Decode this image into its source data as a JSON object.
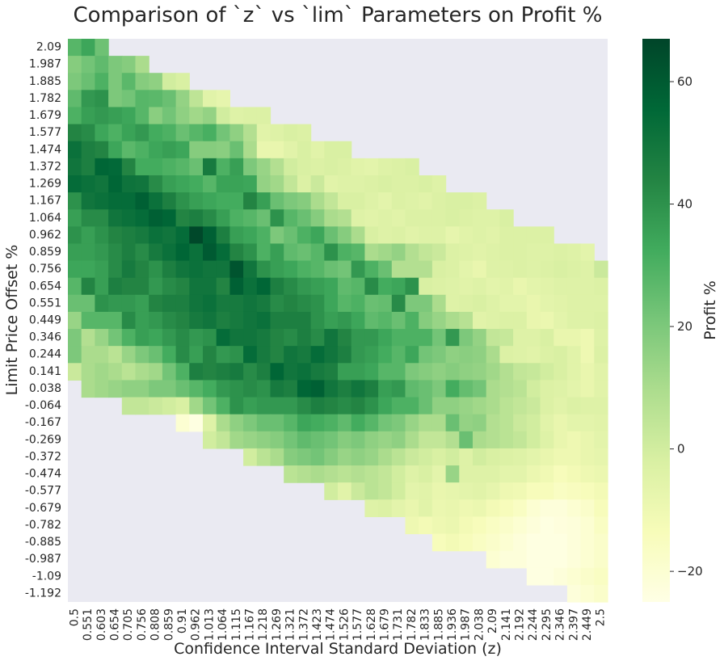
{
  "colors": {
    "cmap": [
      "#ffffe5",
      "#f7fcb9",
      "#d9f0a3",
      "#addd8e",
      "#78c679",
      "#41ab5d",
      "#238443",
      "#006837",
      "#004529"
    ],
    "background": "#eaeaf2"
  },
  "chart_data": {
    "type": "heatmap",
    "title": "Comparison of `z` vs `lim` Parameters on Profit %",
    "xlabel": "Confidence Interval Standard Deviation (z)",
    "ylabel": "Limit Price Offset %",
    "colorbar_label": "Profit %",
    "colorbar_ticks": [
      60,
      40,
      20,
      0,
      -20
    ],
    "zlim": [
      -25,
      67
    ],
    "x": [
      "0.5",
      "0.551",
      "0.603",
      "0.654",
      "0.705",
      "0.756",
      "0.808",
      "0.859",
      "0.91",
      "0.962",
      "1.013",
      "1.064",
      "1.115",
      "1.167",
      "1.218",
      "1.269",
      "1.321",
      "1.372",
      "1.423",
      "1.474",
      "1.526",
      "1.577",
      "1.628",
      "1.679",
      "1.731",
      "1.782",
      "1.833",
      "1.885",
      "1.936",
      "1.987",
      "2.038",
      "2.09",
      "2.141",
      "2.192",
      "2.244",
      "2.295",
      "2.346",
      "2.397",
      "2.449",
      "2.5"
    ],
    "y": [
      "2.09",
      "1.987",
      "1.885",
      "1.782",
      "1.679",
      "1.577",
      "1.474",
      "1.372",
      "1.269",
      "1.167",
      "1.064",
      "0.962",
      "0.859",
      "0.756",
      "0.654",
      "0.551",
      "0.449",
      "0.346",
      "0.244",
      "0.141",
      "0.038",
      "-0.064",
      "-0.167",
      "-0.269",
      "-0.372",
      "-0.474",
      "-0.577",
      "-0.679",
      "-0.782",
      "-0.885",
      "-0.987",
      "-1.09",
      "-1.192"
    ],
    "values": [
      [
        28,
        34,
        23,
        null,
        null,
        null,
        null,
        null,
        null,
        null,
        null,
        null,
        null,
        null,
        null,
        null,
        null,
        null,
        null,
        null,
        null,
        null,
        null,
        null,
        null,
        null,
        null,
        null,
        null,
        null,
        null,
        null,
        null,
        null,
        null,
        null,
        null,
        null,
        null,
        null
      ],
      [
        18,
        22,
        26,
        20,
        18,
        10,
        null,
        null,
        null,
        null,
        null,
        null,
        null,
        null,
        null,
        null,
        null,
        null,
        null,
        null,
        null,
        null,
        null,
        null,
        null,
        null,
        null,
        null,
        null,
        null,
        null,
        null,
        null,
        null,
        null,
        null,
        null,
        null,
        null,
        null
      ],
      [
        20,
        24,
        30,
        20,
        27,
        18,
        16,
        0,
        -2,
        null,
        null,
        null,
        null,
        null,
        null,
        null,
        null,
        null,
        null,
        null,
        null,
        null,
        null,
        null,
        null,
        null,
        null,
        null,
        null,
        null,
        null,
        null,
        null,
        null,
        null,
        null,
        null,
        null,
        null,
        null
      ],
      [
        26,
        38,
        40,
        20,
        22,
        28,
        27,
        24,
        15,
        5,
        -5,
        -7,
        null,
        null,
        null,
        null,
        null,
        null,
        null,
        null,
        null,
        null,
        null,
        null,
        null,
        null,
        null,
        null,
        null,
        null,
        null,
        null,
        null,
        null,
        null,
        null,
        null,
        null,
        null,
        null
      ],
      [
        30,
        36,
        38,
        36,
        34,
        28,
        17,
        22,
        16,
        12,
        15,
        0,
        -4,
        -3,
        -3,
        null,
        null,
        null,
        null,
        null,
        null,
        null,
        null,
        null,
        null,
        null,
        null,
        null,
        null,
        null,
        null,
        null,
        null,
        null,
        null,
        null,
        null,
        null,
        null,
        null
      ],
      [
        44,
        42,
        34,
        30,
        35,
        38,
        32,
        30,
        24,
        28,
        31,
        22,
        16,
        8,
        -5,
        -4,
        -2,
        -3,
        null,
        null,
        null,
        null,
        null,
        null,
        null,
        null,
        null,
        null,
        null,
        null,
        null,
        null,
        null,
        null,
        null,
        null,
        null,
        null,
        null,
        null
      ],
      [
        52,
        46,
        44,
        34,
        27,
        30,
        34,
        36,
        34,
        18,
        18,
        17,
        24,
        10,
        -8,
        -8,
        -5,
        -2,
        -5,
        -2,
        -2,
        null,
        null,
        null,
        null,
        null,
        null,
        null,
        null,
        null,
        null,
        null,
        null,
        null,
        null,
        null,
        null,
        null,
        null,
        null
      ],
      [
        50,
        46,
        56,
        55,
        44,
        32,
        32,
        30,
        28,
        24,
        48,
        30,
        36,
        20,
        14,
        8,
        0,
        -2,
        -3,
        -2,
        -3,
        -5,
        -6,
        -4,
        -3,
        -2,
        null,
        null,
        null,
        null,
        null,
        null,
        null,
        null,
        null,
        null,
        null,
        null,
        null,
        null
      ],
      [
        54,
        52,
        50,
        56,
        51,
        50,
        42,
        36,
        34,
        32,
        28,
        35,
        35,
        34,
        15,
        12,
        4,
        -3,
        2,
        -5,
        -4,
        -4,
        -3,
        -2,
        -3,
        -3,
        -2,
        -4,
        null,
        null,
        null,
        null,
        null,
        null,
        null,
        null,
        null,
        null,
        null,
        null
      ],
      [
        40,
        50,
        52,
        54,
        54,
        58,
        52,
        46,
        40,
        36,
        34,
        32,
        32,
        44,
        36,
        24,
        20,
        18,
        10,
        4,
        -2,
        -2,
        -4,
        -6,
        -3,
        -4,
        -5,
        -3,
        -2,
        -2,
        -3,
        null,
        null,
        null,
        null,
        null,
        null,
        null,
        null,
        null
      ],
      [
        36,
        42,
        42,
        50,
        52,
        54,
        58,
        56,
        44,
        46,
        42,
        36,
        30,
        28,
        24,
        40,
        28,
        24,
        18,
        10,
        8,
        -4,
        -5,
        -4,
        -5,
        -3,
        -3,
        -3,
        -2,
        -3,
        -4,
        -4,
        -2,
        null,
        null,
        null,
        null,
        null,
        null,
        null
      ],
      [
        40,
        36,
        40,
        44,
        46,
        48,
        52,
        50,
        54,
        66,
        58,
        46,
        36,
        34,
        30,
        20,
        24,
        30,
        34,
        24,
        18,
        10,
        -2,
        -4,
        -3,
        -5,
        -4,
        -4,
        -7,
        -5,
        -4,
        -5,
        -3,
        -3,
        -3,
        -3,
        null,
        null,
        null,
        null
      ],
      [
        36,
        36,
        38,
        42,
        46,
        42,
        48,
        52,
        56,
        52,
        60,
        54,
        44,
        40,
        30,
        36,
        26,
        24,
        28,
        40,
        30,
        28,
        10,
        12,
        15,
        8,
        4,
        2,
        -3,
        -4,
        -5,
        -4,
        -3,
        -3,
        -4,
        -4,
        -3,
        -4,
        -6,
        null
      ],
      [
        34,
        34,
        36,
        42,
        48,
        44,
        40,
        46,
        50,
        52,
        50,
        50,
        62,
        50,
        40,
        36,
        34,
        30,
        28,
        24,
        22,
        38,
        30,
        24,
        8,
        8,
        8,
        -2,
        -3,
        -6,
        -8,
        -4,
        -4,
        -3,
        -4,
        -3,
        -2,
        -3,
        -4,
        2
      ],
      [
        28,
        44,
        36,
        46,
        44,
        44,
        38,
        42,
        44,
        50,
        50,
        44,
        58,
        52,
        56,
        46,
        42,
        38,
        36,
        34,
        26,
        28,
        42,
        32,
        34,
        40,
        -2,
        -3,
        -4,
        -5,
        -4,
        -6,
        -5,
        -8,
        -6,
        -5,
        -4,
        -4,
        -4,
        -3
      ],
      [
        24,
        24,
        40,
        38,
        38,
        36,
        44,
        46,
        46,
        50,
        52,
        48,
        48,
        50,
        48,
        42,
        44,
        42,
        40,
        34,
        28,
        30,
        24,
        25,
        42,
        20,
        20,
        10,
        -4,
        -3,
        -2,
        -4,
        -6,
        -6,
        -8,
        -6,
        -5,
        -4,
        -4,
        -4
      ],
      [
        14,
        28,
        28,
        28,
        42,
        36,
        38,
        42,
        44,
        48,
        50,
        46,
        48,
        50,
        52,
        46,
        46,
        46,
        40,
        36,
        38,
        34,
        26,
        28,
        24,
        30,
        18,
        14,
        10,
        7,
        -5,
        -4,
        -3,
        -3,
        -8,
        -9,
        -6,
        -4,
        -4,
        -3
      ],
      [
        20,
        8,
        14,
        22,
        30,
        36,
        34,
        38,
        42,
        38,
        40,
        54,
        50,
        50,
        48,
        44,
        42,
        46,
        42,
        50,
        44,
        38,
        38,
        34,
        30,
        30,
        30,
        22,
        38,
        20,
        15,
        4,
        3,
        -4,
        -4,
        -2,
        -8,
        -8,
        -10,
        -4
      ],
      [
        20,
        10,
        10,
        6,
        14,
        20,
        24,
        32,
        42,
        36,
        44,
        38,
        40,
        54,
        48,
        44,
        50,
        48,
        54,
        50,
        46,
        38,
        36,
        32,
        28,
        34,
        22,
        20,
        16,
        17,
        16,
        10,
        -3,
        -4,
        -5,
        -3,
        -2,
        -5,
        -10,
        -3
      ],
      [
        2,
        10,
        12,
        10,
        6,
        10,
        12,
        22,
        30,
        46,
        44,
        46,
        48,
        42,
        46,
        56,
        50,
        52,
        48,
        46,
        36,
        36,
        34,
        28,
        28,
        20,
        18,
        16,
        18,
        16,
        15,
        12,
        8,
        4,
        3,
        0,
        -2,
        -5,
        -8,
        -5
      ],
      [
        null,
        10,
        12,
        14,
        16,
        16,
        20,
        20,
        24,
        28,
        32,
        38,
        40,
        42,
        40,
        48,
        46,
        56,
        58,
        50,
        46,
        50,
        46,
        36,
        38,
        26,
        24,
        20,
        32,
        25,
        22,
        10,
        8,
        6,
        0,
        -3,
        -4,
        -6,
        -8,
        -5
      ],
      [
        null,
        null,
        null,
        null,
        4,
        4,
        2,
        0,
        -2,
        12,
        22,
        30,
        40,
        36,
        38,
        38,
        38,
        42,
        46,
        44,
        42,
        44,
        40,
        34,
        30,
        30,
        24,
        16,
        16,
        14,
        12,
        10,
        6,
        4,
        2,
        -3,
        -5,
        -3,
        -4,
        -4
      ],
      [
        null,
        null,
        null,
        null,
        null,
        null,
        null,
        null,
        -20,
        -24,
        -4,
        10,
        16,
        20,
        24,
        24,
        28,
        34,
        32,
        30,
        26,
        32,
        28,
        22,
        20,
        14,
        10,
        10,
        24,
        15,
        16,
        8,
        6,
        2,
        0,
        -5,
        -8,
        -6,
        -6,
        -5
      ],
      [
        null,
        null,
        null,
        null,
        null,
        null,
        null,
        null,
        null,
        null,
        0,
        4,
        12,
        14,
        16,
        18,
        22,
        26,
        24,
        22,
        18,
        20,
        16,
        14,
        16,
        10,
        4,
        4,
        8,
        24,
        10,
        8,
        6,
        4,
        0,
        -4,
        -8,
        -10,
        -8,
        -6
      ],
      [
        null,
        null,
        null,
        null,
        null,
        null,
        null,
        null,
        null,
        null,
        null,
        null,
        null,
        0,
        6,
        10,
        18,
        20,
        22,
        18,
        14,
        16,
        14,
        10,
        6,
        2,
        0,
        -2,
        0,
        -4,
        0,
        -2,
        -3,
        -4,
        -6,
        -8,
        -10,
        -10,
        -8,
        -7
      ],
      [
        null,
        null,
        null,
        null,
        null,
        null,
        null,
        null,
        null,
        null,
        null,
        null,
        null,
        null,
        null,
        null,
        6,
        8,
        10,
        8,
        6,
        8,
        6,
        4,
        0,
        -4,
        -2,
        -6,
        14,
        -4,
        -4,
        -4,
        -6,
        -6,
        -9,
        -11,
        -14,
        -12,
        -10,
        -9
      ],
      [
        null,
        null,
        null,
        null,
        null,
        null,
        null,
        null,
        null,
        null,
        null,
        null,
        null,
        null,
        null,
        null,
        null,
        null,
        null,
        0,
        -5,
        2,
        6,
        4,
        0,
        -6,
        -5,
        -8,
        -7,
        -6,
        -5,
        -7,
        -10,
        -11,
        -14,
        -14,
        -16,
        -15,
        -14,
        -12
      ],
      [
        null,
        null,
        null,
        null,
        null,
        null,
        null,
        null,
        null,
        null,
        null,
        null,
        null,
        null,
        null,
        null,
        null,
        null,
        null,
        null,
        null,
        null,
        -4,
        -3,
        -6,
        -8,
        -5,
        -9,
        -8,
        -10,
        -9,
        -12,
        -14,
        -16,
        -20,
        -22,
        -22,
        -20,
        -18,
        -14
      ],
      [
        null,
        null,
        null,
        null,
        null,
        null,
        null,
        null,
        null,
        null,
        null,
        null,
        null,
        null,
        null,
        null,
        null,
        null,
        null,
        null,
        null,
        null,
        null,
        null,
        null,
        -10,
        -12,
        -10,
        -9,
        -12,
        -14,
        -16,
        -18,
        -20,
        -22,
        -24,
        -23,
        -22,
        -20,
        -16
      ],
      [
        null,
        null,
        null,
        null,
        null,
        null,
        null,
        null,
        null,
        null,
        null,
        null,
        null,
        null,
        null,
        null,
        null,
        null,
        null,
        null,
        null,
        null,
        null,
        null,
        null,
        null,
        null,
        -14,
        -12,
        -14,
        -16,
        -18,
        -20,
        -22,
        -24,
        -24,
        -24,
        -22,
        -20,
        -18
      ],
      [
        null,
        null,
        null,
        null,
        null,
        null,
        null,
        null,
        null,
        null,
        null,
        null,
        null,
        null,
        null,
        null,
        null,
        null,
        null,
        null,
        null,
        null,
        null,
        null,
        null,
        null,
        null,
        null,
        null,
        null,
        null,
        -20,
        -22,
        -22,
        -24,
        -24,
        -24,
        -22,
        -20,
        -18
      ],
      [
        null,
        null,
        null,
        null,
        null,
        null,
        null,
        null,
        null,
        null,
        null,
        null,
        null,
        null,
        null,
        null,
        null,
        null,
        null,
        null,
        null,
        null,
        null,
        null,
        null,
        null,
        null,
        null,
        null,
        null,
        null,
        null,
        null,
        null,
        -24,
        -24,
        -22,
        -20,
        -18,
        -16
      ],
      [
        null,
        null,
        null,
        null,
        null,
        null,
        null,
        null,
        null,
        null,
        null,
        null,
        null,
        null,
        null,
        null,
        null,
        null,
        null,
        null,
        null,
        null,
        null,
        null,
        null,
        null,
        null,
        null,
        null,
        null,
        null,
        null,
        null,
        null,
        null,
        null,
        null,
        -22,
        -20,
        -18
      ]
    ]
  }
}
